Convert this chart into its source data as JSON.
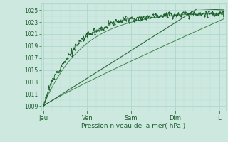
{
  "bg_color": "#cce8df",
  "grid_color_major": "#a8d4c8",
  "grid_color_minor": "#b8ddd4",
  "line_color_dark": "#1a5c2a",
  "line_color_mid": "#2d7a3a",
  "ylabel_text": "Pression niveau de la mer( hPa )",
  "x_tick_labels": [
    "Jeu",
    "Ven",
    "Sam",
    "Dim",
    "L"
  ],
  "x_tick_positions": [
    0.0,
    1.0,
    2.0,
    3.0,
    4.0
  ],
  "ylim": [
    1008.2,
    1026.2
  ],
  "xlim": [
    -0.05,
    4.15
  ],
  "yticks": [
    1009,
    1011,
    1013,
    1015,
    1017,
    1019,
    1021,
    1023,
    1025
  ],
  "n_points": 300
}
